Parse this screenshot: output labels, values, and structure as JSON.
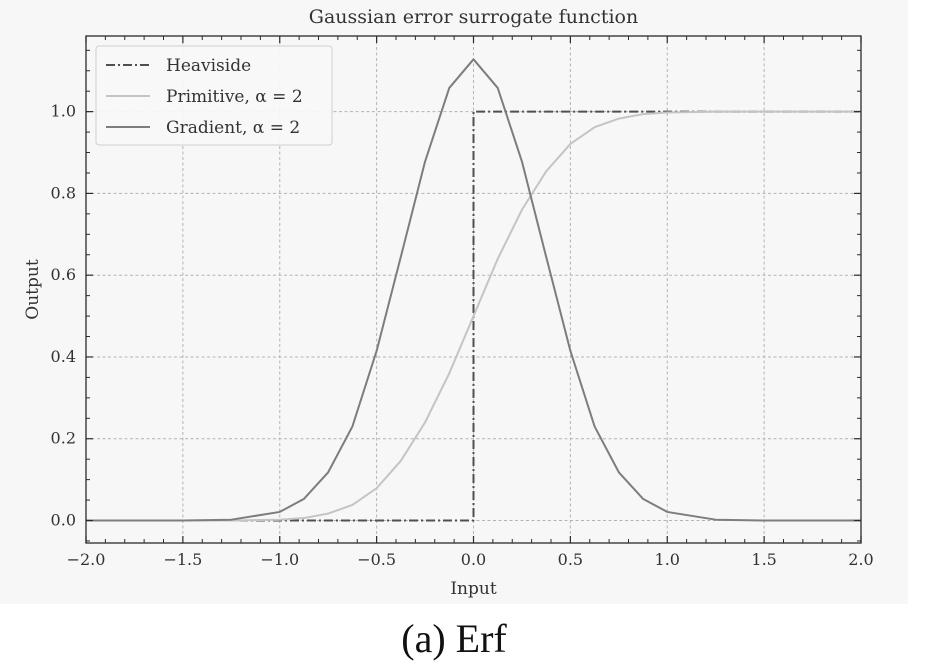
{
  "chart_data": {
    "type": "line",
    "title": "Gaussian error surrogate function",
    "xlabel": "Input",
    "ylabel": "Output",
    "xlim": [
      -2.0,
      2.0
    ],
    "ylim": [
      -0.055,
      1.185
    ],
    "x_ticks": [
      -2.0,
      -1.5,
      -1.0,
      -0.5,
      0.0,
      0.5,
      1.0,
      1.5,
      2.0
    ],
    "x_tick_labels": [
      "−2.0",
      "−1.5",
      "−1.0",
      "−0.5",
      "0.0",
      "0.5",
      "1.0",
      "1.5",
      "2.0"
    ],
    "y_ticks": [
      0.0,
      0.2,
      0.4,
      0.6,
      0.8,
      1.0
    ],
    "y_tick_labels": [
      "0.0",
      "0.2",
      "0.4",
      "0.6",
      "0.8",
      "1.0"
    ],
    "grid": true,
    "legend_position": "top-left",
    "series": [
      {
        "name": "Heaviside",
        "color": "#505050",
        "style": "dash-dot",
        "x": [
          -2.0,
          0.0,
          0.0,
          2.0
        ],
        "y": [
          0.0,
          0.0,
          1.0,
          1.0
        ]
      },
      {
        "name": "Primitive, α = 2",
        "color": "#c4c4c4",
        "style": "solid",
        "x": [
          -2.0,
          -1.5,
          -1.25,
          -1.0,
          -0.875,
          -0.75,
          -0.625,
          -0.5,
          -0.375,
          -0.25,
          -0.125,
          0.0,
          0.125,
          0.25,
          0.375,
          0.5,
          0.625,
          0.75,
          0.875,
          1.0,
          1.25,
          1.5,
          2.0
        ],
        "y": [
          0.0,
          0.0,
          0.0,
          0.002,
          0.006,
          0.017,
          0.038,
          0.079,
          0.146,
          0.24,
          0.36,
          0.5,
          0.64,
          0.76,
          0.854,
          0.921,
          0.962,
          0.983,
          0.994,
          0.998,
          1.0,
          1.0,
          1.0
        ]
      },
      {
        "name": "Gradient, α = 2",
        "color": "#7d7d7d",
        "style": "solid",
        "x": [
          -2.0,
          -1.5,
          -1.25,
          -1.0,
          -0.875,
          -0.75,
          -0.625,
          -0.5,
          -0.375,
          -0.25,
          -0.125,
          0.0,
          0.125,
          0.25,
          0.375,
          0.5,
          0.625,
          0.75,
          0.875,
          1.0,
          1.25,
          1.5,
          2.0
        ],
        "y": [
          0.0,
          0.0,
          0.002,
          0.021,
          0.053,
          0.118,
          0.23,
          0.415,
          0.645,
          0.878,
          1.058,
          1.128,
          1.058,
          0.878,
          0.645,
          0.415,
          0.23,
          0.118,
          0.053,
          0.021,
          0.002,
          0.0,
          0.0
        ]
      }
    ]
  },
  "caption": "(a) Erf"
}
